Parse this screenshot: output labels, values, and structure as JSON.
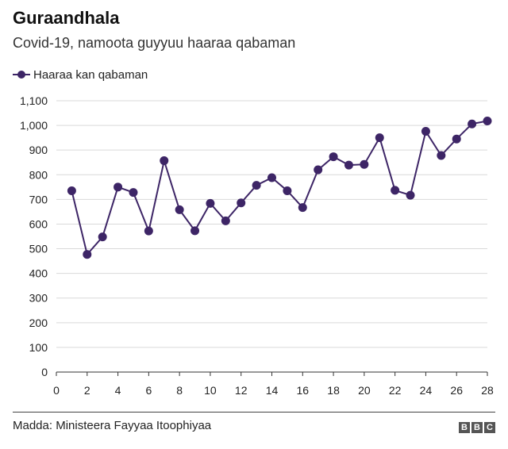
{
  "title": "Guraandhala",
  "subtitle": "Covid-19, namoota guyyuu haaraa qabaman",
  "legend": {
    "label": "Haaraa kan qabaman"
  },
  "source": "Madda: Ministeera Fayyaa Itoophiyaa",
  "logo": {
    "letters": [
      "B",
      "B",
      "C"
    ]
  },
  "colors": {
    "series": "#3d2566",
    "grid": "#d9d9d9",
    "axis": "#333333"
  },
  "chart_data": {
    "type": "line",
    "title": "Guraandhala",
    "subtitle": "Covid-19, namoota guyyuu haaraa qabaman",
    "xlabel": "",
    "ylabel": "",
    "xlim": [
      0,
      28
    ],
    "ylim": [
      0,
      1100
    ],
    "x_ticks": [
      0,
      2,
      4,
      6,
      8,
      10,
      12,
      14,
      16,
      18,
      20,
      22,
      24,
      26,
      28
    ],
    "x_tick_labels": [
      "0",
      "2",
      "4",
      "6",
      "8",
      "10",
      "12",
      "14",
      "16",
      "18",
      "20",
      "22",
      "24",
      "26",
      "28"
    ],
    "y_ticks": [
      0,
      100,
      200,
      300,
      400,
      500,
      600,
      700,
      800,
      900,
      1000,
      1100
    ],
    "y_tick_labels": [
      "0",
      "100",
      "200",
      "300",
      "400",
      "500",
      "600",
      "700",
      "800",
      "900",
      "1,000",
      "1,100"
    ],
    "grid": true,
    "legend_position": "top-left",
    "series": [
      {
        "name": "Haaraa kan qabaman",
        "x": [
          1,
          2,
          3,
          4,
          5,
          6,
          7,
          8,
          9,
          10,
          11,
          12,
          13,
          14,
          15,
          16,
          17,
          18,
          19,
          20,
          21,
          22,
          23,
          24,
          25,
          26,
          27,
          28
        ],
        "values": [
          735,
          477,
          548,
          750,
          728,
          572,
          857,
          658,
          573,
          684,
          613,
          686,
          757,
          788,
          735,
          667,
          820,
          873,
          839,
          842,
          950,
          737,
          717,
          976,
          878,
          945,
          1006,
          1018
        ]
      }
    ]
  }
}
